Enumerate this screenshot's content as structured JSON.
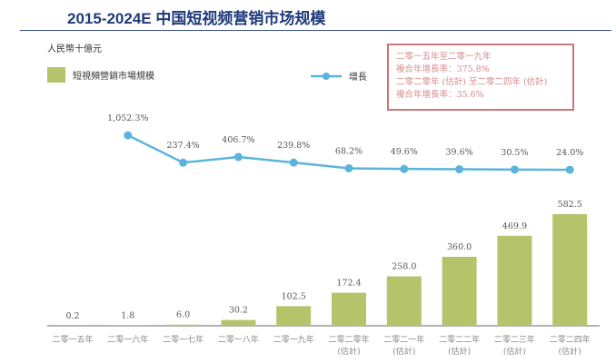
{
  "title": "2015-2024E 中国短视频营销市场规模",
  "unit": "人民幣十億元",
  "legend": {
    "bar": "短視頻營銷市場規模",
    "line": "增長"
  },
  "cagr": [
    "二零一五年至二零一九年",
    "複合年增長率：375.8%",
    "二零二零年 (估計) 至二零二四年 (估計)",
    "複合年增長率：35.6%"
  ],
  "colors": {
    "bar": "#b5c46b",
    "line": "#5ab4dc",
    "box": "#c9777a"
  },
  "chart_data": {
    "type": "bar+line",
    "categories": [
      [
        "二零一五年"
      ],
      [
        "二零一六年"
      ],
      [
        "二零一七年"
      ],
      [
        "二零一八年"
      ],
      [
        "二零一九年"
      ],
      [
        "二零二零年",
        "(估計)"
      ],
      [
        "二零二一年",
        "(估計)"
      ],
      [
        "二零二二年",
        "(估計)"
      ],
      [
        "二零二三年",
        "(估計)"
      ],
      [
        "二零二四年",
        "(估計)"
      ]
    ],
    "series": [
      {
        "name": "短視頻營銷市場規模",
        "type": "bar",
        "values": [
          0.2,
          1.8,
          6.0,
          30.2,
          102.5,
          172.4,
          258.0,
          360.0,
          469.9,
          582.5
        ],
        "labels": [
          "0.2",
          "1.8",
          "6.0",
          "30.2",
          "102.5",
          "172.4",
          "258.0",
          "360.0",
          "469.9",
          "582.5"
        ]
      },
      {
        "name": "增長",
        "type": "line",
        "values": [
          null,
          1052.3,
          237.4,
          406.7,
          239.8,
          68.2,
          49.6,
          39.6,
          30.5,
          24.0
        ],
        "labels": [
          "",
          "1,052.3%",
          "237.4%",
          "406.7%",
          "239.8%",
          "68.2%",
          "49.6%",
          "39.6%",
          "30.5%",
          "24.0%"
        ]
      }
    ]
  }
}
